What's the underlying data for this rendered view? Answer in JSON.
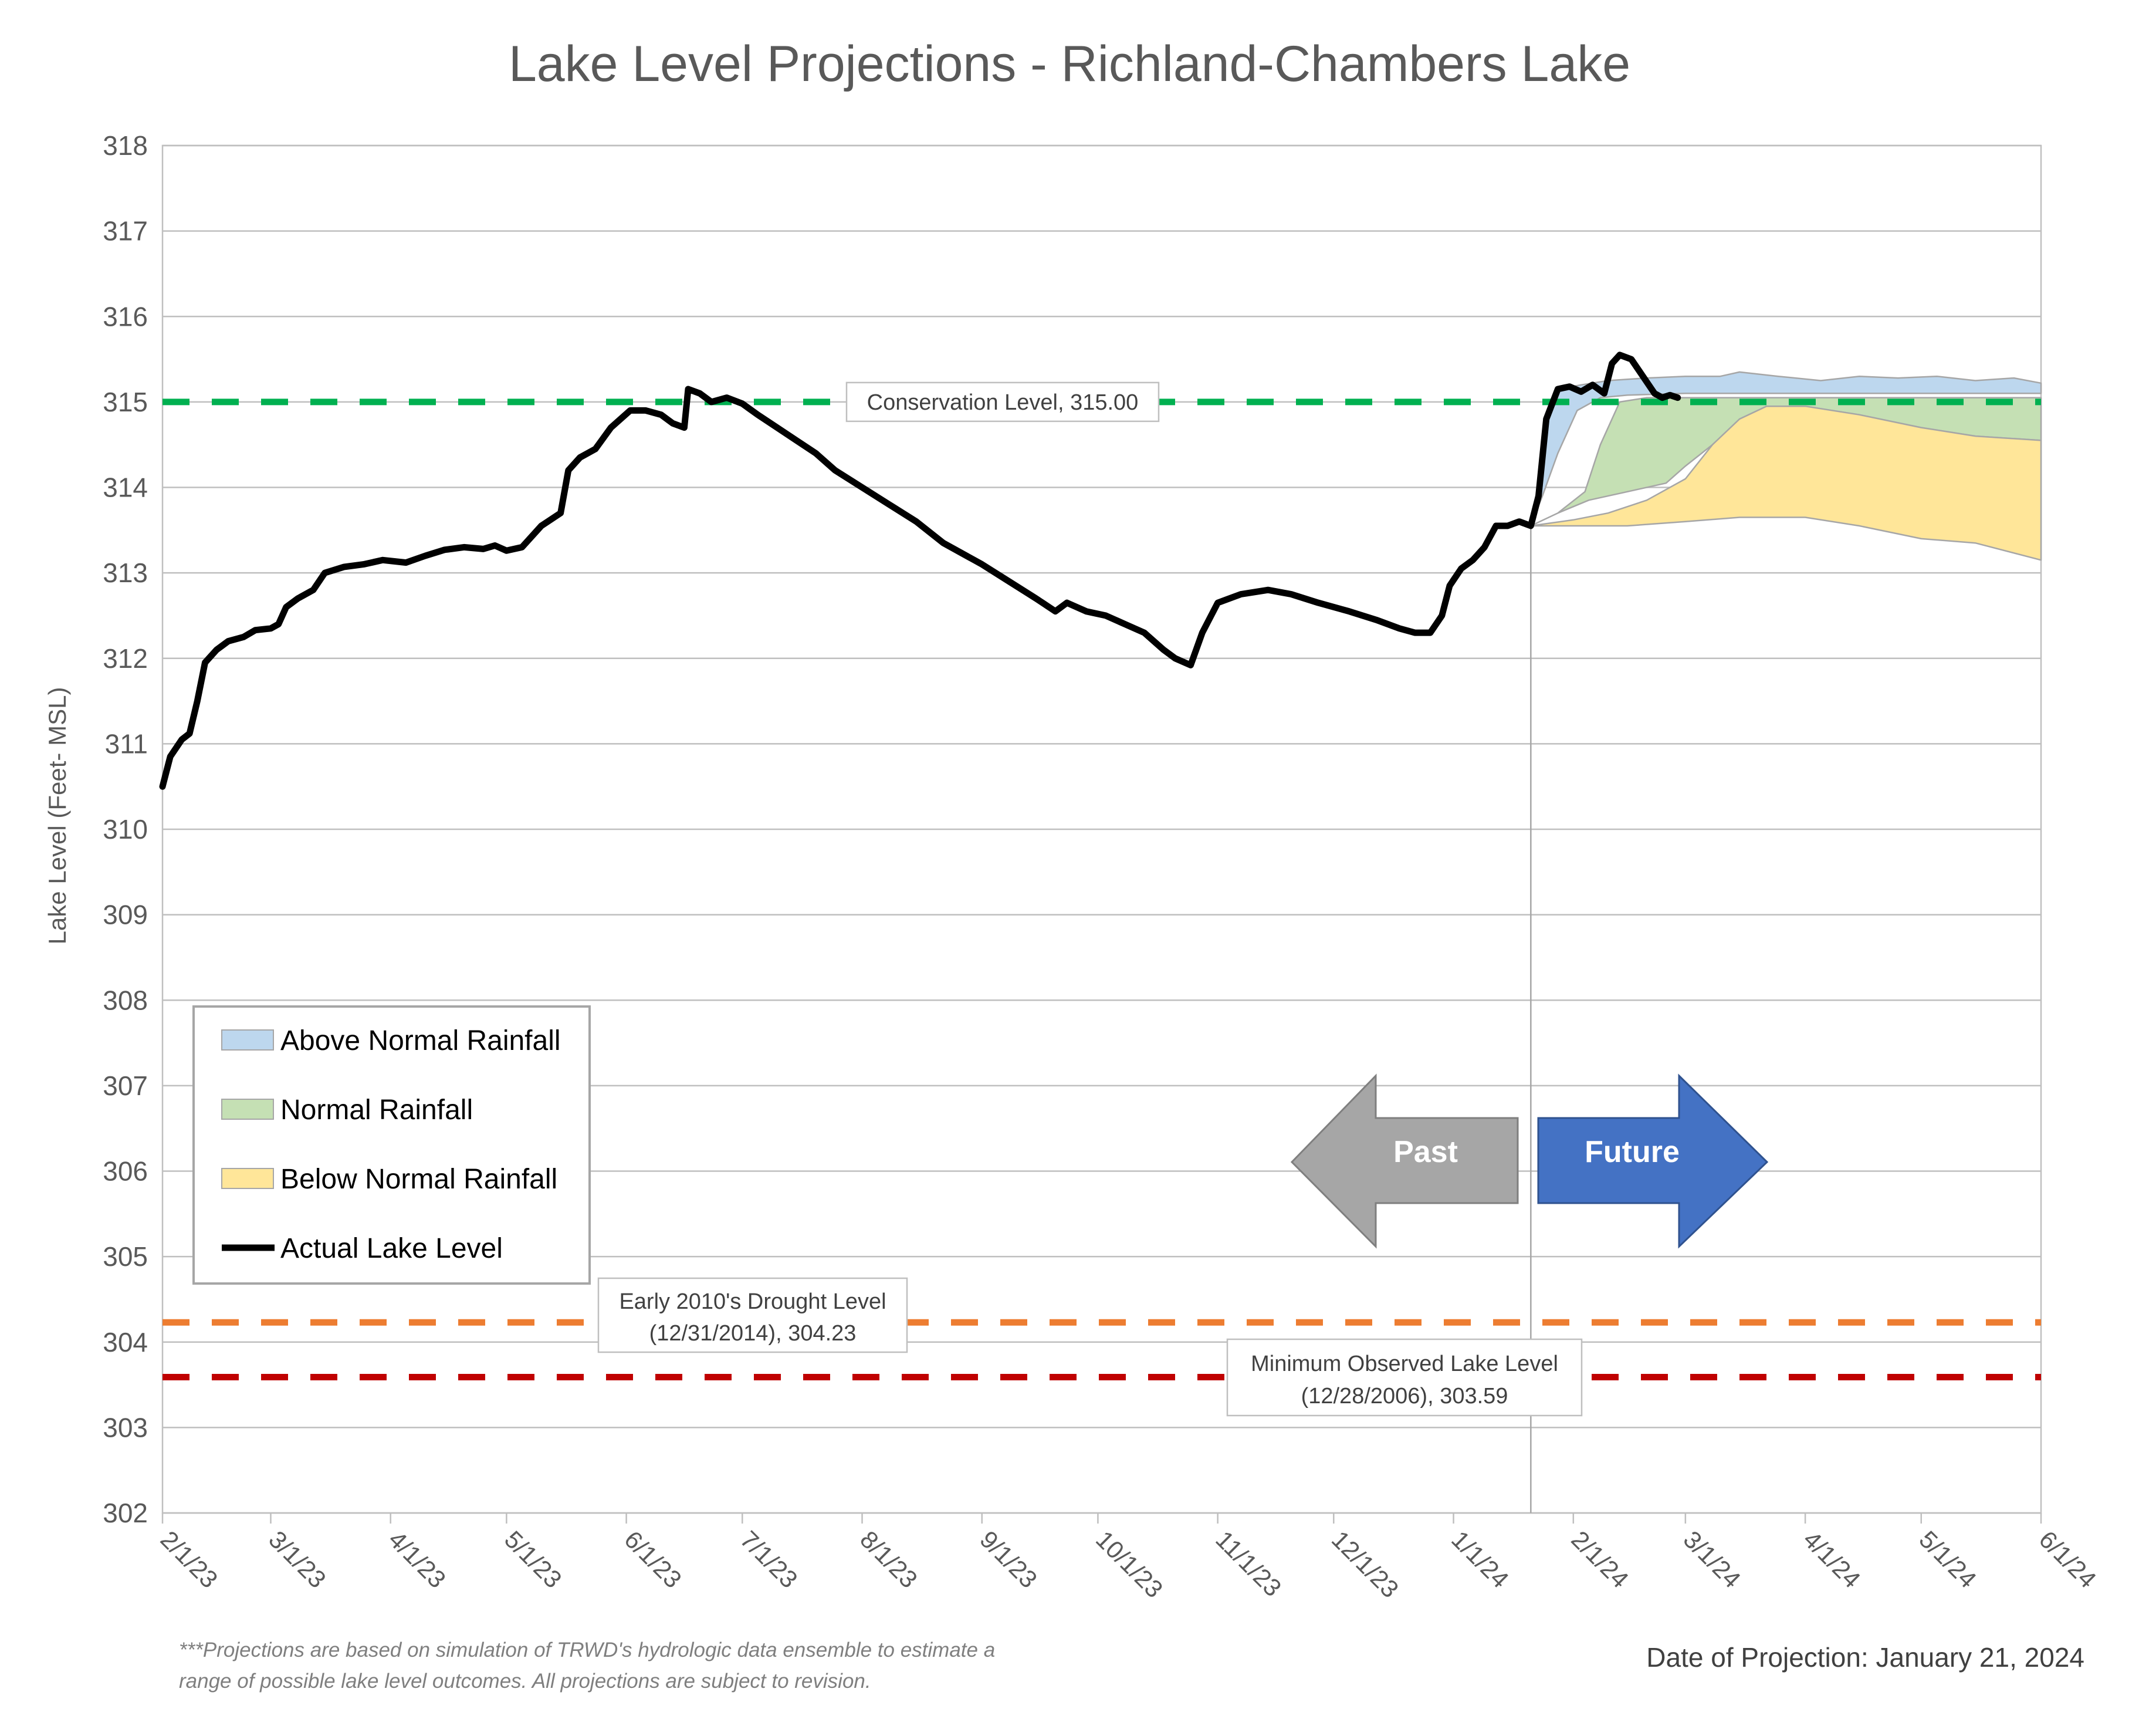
{
  "chart_data": {
    "type": "line",
    "title": "Lake Level Projections - Richland-Chambers Lake",
    "ylabel": "Lake Level (Feet- MSL)",
    "xlabel": "",
    "ylim": [
      302,
      318
    ],
    "yticks": [
      302,
      303,
      304,
      305,
      306,
      307,
      308,
      309,
      310,
      311,
      312,
      313,
      314,
      315,
      316,
      317,
      318
    ],
    "xlim": [
      "2023-02-01",
      "2024-06-01"
    ],
    "xticks": [
      {
        "date": "2023-02-01",
        "label": "2/1/23"
      },
      {
        "date": "2023-03-01",
        "label": "3/1/23"
      },
      {
        "date": "2023-04-01",
        "label": "4/1/23"
      },
      {
        "date": "2023-05-01",
        "label": "5/1/23"
      },
      {
        "date": "2023-06-01",
        "label": "6/1/23"
      },
      {
        "date": "2023-07-01",
        "label": "7/1/23"
      },
      {
        "date": "2023-08-01",
        "label": "8/1/23"
      },
      {
        "date": "2023-09-01",
        "label": "9/1/23"
      },
      {
        "date": "2023-10-01",
        "label": "10/1/23"
      },
      {
        "date": "2023-11-01",
        "label": "11/1/23"
      },
      {
        "date": "2023-12-01",
        "label": "12/1/23"
      },
      {
        "date": "2024-01-01",
        "label": "1/1/24"
      },
      {
        "date": "2024-02-01",
        "label": "2/1/24"
      },
      {
        "date": "2024-03-01",
        "label": "3/1/24"
      },
      {
        "date": "2024-04-01",
        "label": "4/1/24"
      },
      {
        "date": "2024-05-01",
        "label": "5/1/24"
      },
      {
        "date": "2024-06-01",
        "label": "6/1/24"
      }
    ],
    "grid": true,
    "projection_start": "2024-01-21",
    "series": [
      {
        "name": "Actual Lake Level",
        "color": "#000000",
        "points": [
          [
            "2023-02-01",
            310.5
          ],
          [
            "2023-02-03",
            310.85
          ],
          [
            "2023-02-06",
            311.05
          ],
          [
            "2023-02-08",
            311.12
          ],
          [
            "2023-02-10",
            311.5
          ],
          [
            "2023-02-12",
            311.95
          ],
          [
            "2023-02-15",
            312.1
          ],
          [
            "2023-02-18",
            312.2
          ],
          [
            "2023-02-22",
            312.25
          ],
          [
            "2023-02-25",
            312.33
          ],
          [
            "2023-03-01",
            312.35
          ],
          [
            "2023-03-03",
            312.4
          ],
          [
            "2023-03-05",
            312.6
          ],
          [
            "2023-03-08",
            312.7
          ],
          [
            "2023-03-12",
            312.8
          ],
          [
            "2023-03-15",
            313.0
          ],
          [
            "2023-03-20",
            313.07
          ],
          [
            "2023-03-25",
            313.1
          ],
          [
            "2023-03-30",
            313.15
          ],
          [
            "2023-04-05",
            313.12
          ],
          [
            "2023-04-10",
            313.2
          ],
          [
            "2023-04-15",
            313.27
          ],
          [
            "2023-04-20",
            313.3
          ],
          [
            "2023-04-25",
            313.28
          ],
          [
            "2023-04-28",
            313.32
          ],
          [
            "2023-05-01",
            313.26
          ],
          [
            "2023-05-05",
            313.3
          ],
          [
            "2023-05-10",
            313.55
          ],
          [
            "2023-05-15",
            313.7
          ],
          [
            "2023-05-17",
            314.2
          ],
          [
            "2023-05-20",
            314.35
          ],
          [
            "2023-05-24",
            314.45
          ],
          [
            "2023-05-28",
            314.7
          ],
          [
            "2023-06-02",
            314.9
          ],
          [
            "2023-06-06",
            314.9
          ],
          [
            "2023-06-10",
            314.85
          ],
          [
            "2023-06-13",
            314.75
          ],
          [
            "2023-06-16",
            314.7
          ],
          [
            "2023-06-17",
            315.15
          ],
          [
            "2023-06-20",
            315.1
          ],
          [
            "2023-06-23",
            315.0
          ],
          [
            "2023-06-27",
            315.05
          ],
          [
            "2023-07-01",
            314.98
          ],
          [
            "2023-07-05",
            314.85
          ],
          [
            "2023-07-10",
            314.7
          ],
          [
            "2023-07-15",
            314.55
          ],
          [
            "2023-07-20",
            314.4
          ],
          [
            "2023-07-25",
            314.2
          ],
          [
            "2023-08-01",
            314.0
          ],
          [
            "2023-08-08",
            313.8
          ],
          [
            "2023-08-15",
            313.6
          ],
          [
            "2023-08-22",
            313.35
          ],
          [
            "2023-09-01",
            313.1
          ],
          [
            "2023-09-08",
            312.9
          ],
          [
            "2023-09-15",
            312.7
          ],
          [
            "2023-09-20",
            312.55
          ],
          [
            "2023-09-23",
            312.65
          ],
          [
            "2023-09-28",
            312.55
          ],
          [
            "2023-10-03",
            312.5
          ],
          [
            "2023-10-08",
            312.4
          ],
          [
            "2023-10-13",
            312.3
          ],
          [
            "2023-10-18",
            312.1
          ],
          [
            "2023-10-21",
            312.0
          ],
          [
            "2023-10-25",
            311.92
          ],
          [
            "2023-10-28",
            312.3
          ],
          [
            "2023-11-01",
            312.65
          ],
          [
            "2023-11-07",
            312.75
          ],
          [
            "2023-11-14",
            312.8
          ],
          [
            "2023-11-20",
            312.75
          ],
          [
            "2023-11-27",
            312.65
          ],
          [
            "2023-12-05",
            312.55
          ],
          [
            "2023-12-12",
            312.45
          ],
          [
            "2023-12-18",
            312.35
          ],
          [
            "2023-12-22",
            312.3
          ],
          [
            "2023-12-26",
            312.3
          ],
          [
            "2023-12-29",
            312.5
          ],
          [
            "2023-12-31",
            312.85
          ],
          [
            "2024-01-03",
            313.05
          ],
          [
            "2024-01-06",
            313.15
          ],
          [
            "2024-01-09",
            313.3
          ],
          [
            "2024-01-12",
            313.55
          ],
          [
            "2024-01-15",
            313.55
          ],
          [
            "2024-01-18",
            313.6
          ],
          [
            "2024-01-21",
            313.55
          ],
          [
            "2024-01-23",
            313.9
          ],
          [
            "2024-01-25",
            314.8
          ],
          [
            "2024-01-28",
            315.15
          ],
          [
            "2024-01-31",
            315.18
          ],
          [
            "2024-02-03",
            315.12
          ],
          [
            "2024-02-06",
            315.2
          ],
          [
            "2024-02-09",
            315.1
          ],
          [
            "2024-02-11",
            315.45
          ],
          [
            "2024-02-13",
            315.55
          ],
          [
            "2024-02-16",
            315.5
          ],
          [
            "2024-02-19",
            315.3
          ],
          [
            "2024-02-22",
            315.1
          ],
          [
            "2024-02-24",
            315.05
          ],
          [
            "2024-02-26",
            315.08
          ],
          [
            "2024-02-28",
            315.05
          ]
        ]
      }
    ],
    "bands": [
      {
        "name": "Above Normal Rainfall",
        "color": "#bdd7ee",
        "lower": [
          [
            "2024-01-21",
            313.55
          ],
          [
            "2024-01-24",
            313.9
          ],
          [
            "2024-01-28",
            314.4
          ],
          [
            "2024-02-02",
            314.9
          ],
          [
            "2024-02-08",
            315.05
          ],
          [
            "2024-02-15",
            315.08
          ],
          [
            "2024-03-01",
            315.1
          ],
          [
            "2024-04-01",
            315.1
          ],
          [
            "2024-05-01",
            315.1
          ],
          [
            "2024-06-01",
            315.1
          ]
        ],
        "upper": [
          [
            "2024-01-21",
            313.55
          ],
          [
            "2024-01-23",
            313.9
          ],
          [
            "2024-01-25",
            314.8
          ],
          [
            "2024-01-28",
            315.15
          ],
          [
            "2024-02-03",
            315.2
          ],
          [
            "2024-02-10",
            315.25
          ],
          [
            "2024-02-20",
            315.28
          ],
          [
            "2024-03-01",
            315.3
          ],
          [
            "2024-03-10",
            315.3
          ],
          [
            "2024-03-15",
            315.35
          ],
          [
            "2024-03-25",
            315.3
          ],
          [
            "2024-04-05",
            315.25
          ],
          [
            "2024-04-15",
            315.3
          ],
          [
            "2024-04-25",
            315.28
          ],
          [
            "2024-05-05",
            315.3
          ],
          [
            "2024-05-15",
            315.25
          ],
          [
            "2024-05-25",
            315.28
          ],
          [
            "2024-06-01",
            315.22
          ]
        ]
      },
      {
        "name": "Normal Rainfall",
        "color": "#c5e0b4",
        "lower": [
          [
            "2024-01-21",
            313.55
          ],
          [
            "2024-01-28",
            313.7
          ],
          [
            "2024-02-05",
            313.85
          ],
          [
            "2024-02-15",
            313.95
          ],
          [
            "2024-02-25",
            314.05
          ],
          [
            "2024-03-01",
            314.25
          ],
          [
            "2024-03-08",
            314.5
          ],
          [
            "2024-03-15",
            314.8
          ],
          [
            "2024-03-22",
            314.95
          ],
          [
            "2024-04-01",
            314.95
          ],
          [
            "2024-04-15",
            314.85
          ],
          [
            "2024-05-01",
            314.7
          ],
          [
            "2024-05-15",
            314.6
          ],
          [
            "2024-06-01",
            314.55
          ]
        ],
        "upper": [
          [
            "2024-01-21",
            313.55
          ],
          [
            "2024-01-28",
            313.7
          ],
          [
            "2024-02-04",
            313.95
          ],
          [
            "2024-02-08",
            314.5
          ],
          [
            "2024-02-13",
            315.0
          ],
          [
            "2024-02-20",
            315.05
          ],
          [
            "2024-03-01",
            315.05
          ],
          [
            "2024-04-01",
            315.05
          ],
          [
            "2024-05-01",
            315.05
          ],
          [
            "2024-06-01",
            315.05
          ]
        ]
      },
      {
        "name": "Below Normal Rainfall",
        "color": "#ffe699",
        "lower": [
          [
            "2024-01-21",
            313.55
          ],
          [
            "2024-02-01",
            313.55
          ],
          [
            "2024-02-15",
            313.55
          ],
          [
            "2024-03-01",
            313.6
          ],
          [
            "2024-03-15",
            313.65
          ],
          [
            "2024-04-01",
            313.65
          ],
          [
            "2024-04-15",
            313.55
          ],
          [
            "2024-05-01",
            313.4
          ],
          [
            "2024-05-15",
            313.35
          ],
          [
            "2024-06-01",
            313.15
          ]
        ],
        "upper": [
          [
            "2024-01-21",
            313.55
          ],
          [
            "2024-02-01",
            313.62
          ],
          [
            "2024-02-10",
            313.7
          ],
          [
            "2024-02-20",
            313.85
          ],
          [
            "2024-03-01",
            314.1
          ],
          [
            "2024-03-08",
            314.5
          ],
          [
            "2024-03-15",
            314.8
          ],
          [
            "2024-03-22",
            314.95
          ],
          [
            "2024-04-01",
            314.95
          ],
          [
            "2024-04-15",
            314.85
          ],
          [
            "2024-05-01",
            314.7
          ],
          [
            "2024-05-15",
            314.6
          ],
          [
            "2024-06-01",
            314.55
          ]
        ]
      }
    ],
    "reference_lines": [
      {
        "name": "Conservation Level",
        "value": 315.0,
        "color": "#00b050",
        "label": "Conservation Level, 315.00"
      },
      {
        "name": "Early 2010's Drought Level",
        "value": 304.23,
        "color": "#ed7d31",
        "label_line1": "Early 2010's Drought Level",
        "label_line2": "(12/31/2014), 304.23"
      },
      {
        "name": "Minimum Observed Lake Level",
        "value": 303.59,
        "color": "#c00000",
        "label_line1": "Minimum Observed Lake Level",
        "label_line2": "(12/28/2006), 303.59"
      }
    ],
    "legend": {
      "position": "lower-left",
      "items": [
        {
          "label": "Above Normal Rainfall",
          "color": "#bdd7ee",
          "kind": "swatch"
        },
        {
          "label": "Normal Rainfall",
          "color": "#c5e0b4",
          "kind": "swatch"
        },
        {
          "label": "Below Normal Rainfall",
          "color": "#ffe699",
          "kind": "swatch"
        },
        {
          "label": "Actual Lake Level",
          "color": "#000000",
          "kind": "line"
        }
      ]
    },
    "arrows": {
      "past": {
        "label": "Past",
        "color": "#a6a6a6"
      },
      "future": {
        "label": "Future",
        "color": "#4472c4"
      }
    },
    "footnote_line1": "***Projections are based on simulation of TRWD's hydrologic data ensemble to estimate a",
    "footnote_line2": "range of possible lake level outcomes.  All projections are subject to revision.",
    "projection_date": "Date of Projection: January 21, 2024"
  }
}
